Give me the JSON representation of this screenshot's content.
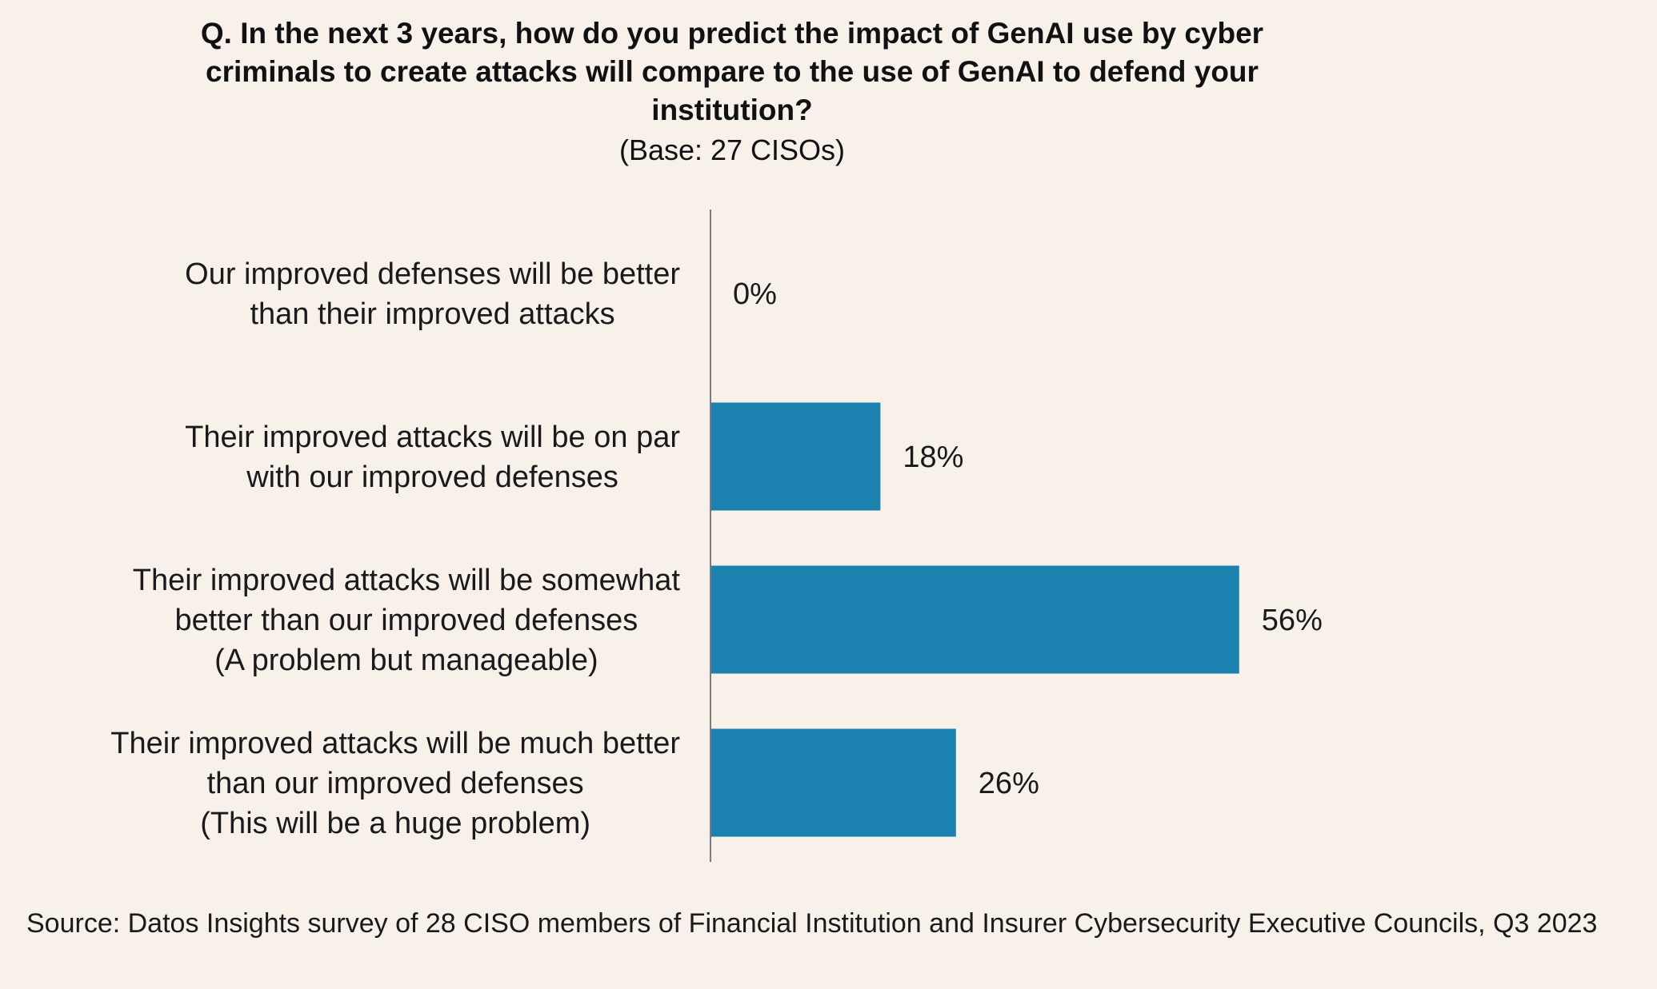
{
  "title": "Q. In the next 3 years, how do you predict the impact of GenAI use by cyber criminals to create attacks will compare to the use of GenAI to defend your institution?",
  "subtitle": "(Base: 27 CISOs)",
  "source": "Source: Datos Insights survey of 28 CISO members of Financial Institution and Insurer Cybersecurity Executive Councils, Q3 2023",
  "colors": {
    "background": "#f8f1ea",
    "bar": "#1b82b0",
    "axis": "#7a7a7a"
  },
  "chart_data": {
    "type": "bar",
    "orientation": "horizontal",
    "categories": [
      [
        "Our improved defenses will be better",
        "than their improved attacks"
      ],
      [
        "Their improved attacks will be on par",
        "with our improved defenses"
      ],
      [
        "Their improved attacks will be somewhat",
        "better than our improved defenses",
        "(A problem but manageable)"
      ],
      [
        "Their improved attacks will be much better",
        "than our improved defenses",
        "(This will be a huge problem)"
      ]
    ],
    "values": [
      0,
      18,
      56,
      26
    ],
    "value_labels": [
      "0%",
      "18%",
      "56%",
      "26%"
    ],
    "unit": "%",
    "xlim": [
      0,
      100
    ],
    "grid": false,
    "legend": "none"
  }
}
